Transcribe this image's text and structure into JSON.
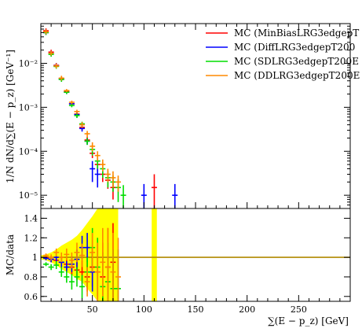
{
  "chart_data": [
    {
      "type": "scatter",
      "panel": "main",
      "ylabel": "1/N dN/d∑(E − p_z) [GeV⁻¹]",
      "yscale": "log",
      "ylim": [
        5e-06,
        0.08
      ],
      "xlim": [
        0,
        300
      ],
      "yticks": [
        {
          "value": 0.01,
          "label": "10⁻²"
        },
        {
          "value": 0.001,
          "label": "10⁻³"
        },
        {
          "value": 0.0001,
          "label": "10⁻⁴"
        },
        {
          "value": 1e-05,
          "label": "10⁻⁵"
        }
      ],
      "legend_position": "top-right",
      "series": [
        {
          "name": "MC (MinBiasLRG3edgepT",
          "color": "#ff0000",
          "x": [
            5,
            10,
            15,
            20,
            25,
            30,
            35,
            40,
            45,
            50,
            55,
            60,
            65,
            70,
            110
          ],
          "y": [
            0.055,
            0.018,
            0.009,
            0.0045,
            0.0023,
            0.0012,
            0.0007,
            0.00035,
            0.00018,
            9e-05,
            5e-05,
            3e-05,
            2.2e-05,
            1.5e-05,
            1.5e-05
          ],
          "yerr": [
            0,
            0,
            0,
            0,
            0.0002,
            0.0001,
            8e-05,
            5e-05,
            3e-05,
            2e-05,
            1.5e-05,
            1e-05,
            8e-06,
            7e-06,
            1.5e-05
          ]
        },
        {
          "name": "MC (DiffLRG3edgepT200",
          "color": "#0000ff",
          "x": [
            5,
            10,
            15,
            20,
            25,
            30,
            35,
            40,
            45,
            50,
            55,
            100,
            130
          ],
          "y": [
            0.05,
            0.017,
            0.0088,
            0.0044,
            0.0022,
            0.0012,
            0.00068,
            0.00033,
            0.00017,
            4e-05,
            3e-05,
            1e-05,
            1e-05
          ],
          "yerr": [
            0,
            0,
            0,
            0,
            0.0002,
            0.0001,
            8e-05,
            5e-05,
            3e-05,
            2e-05,
            1.5e-05,
            8e-06,
            8e-06
          ]
        },
        {
          "name": "MC (SDLRG3edgepT200E",
          "color": "#00dd00",
          "x": [
            5,
            10,
            15,
            20,
            25,
            30,
            35,
            40,
            45,
            50,
            55,
            60,
            65,
            70,
            75,
            80
          ],
          "y": [
            0.05,
            0.016,
            0.0085,
            0.0043,
            0.0022,
            0.0011,
            0.00065,
            0.00042,
            0.00017,
            0.00011,
            6e-05,
            4e-05,
            2.5e-05,
            2e-05,
            1.5e-05,
            1e-05
          ],
          "yerr": [
            0,
            0,
            0,
            0,
            0.0002,
            0.0001,
            8e-05,
            5e-05,
            3e-05,
            3e-05,
            2e-05,
            1.5e-05,
            1e-05,
            8e-06,
            8e-06,
            7e-06
          ]
        },
        {
          "name": "MC (DDLRG3edgepT200E",
          "color": "#ff8800",
          "x": [
            5,
            10,
            15,
            20,
            25,
            30,
            35,
            40,
            45,
            50,
            55,
            60,
            65,
            70,
            75
          ],
          "y": [
            0.052,
            0.017,
            0.0087,
            0.0046,
            0.0024,
            0.0013,
            0.0008,
            0.0004,
            0.00025,
            0.00013,
            8e-05,
            5e-05,
            3e-05,
            2.5e-05,
            2e-05
          ],
          "yerr": [
            0,
            0,
            0,
            0,
            0.0002,
            0.00012,
            8e-05,
            6e-05,
            4e-05,
            3e-05,
            2e-05,
            1.5e-05,
            1e-05,
            1e-05,
            8e-06
          ]
        }
      ]
    },
    {
      "type": "scatter",
      "panel": "ratio",
      "ylabel": "MC/data",
      "xlabel": "∑(E − p_z) [GeV]",
      "xlim": [
        0,
        300
      ],
      "ylim": [
        0.55,
        1.5
      ],
      "reference_line": 1,
      "xticks": [
        {
          "value": 50,
          "label": "50"
        },
        {
          "value": 100,
          "label": "100"
        },
        {
          "value": 150,
          "label": "150"
        },
        {
          "value": 200,
          "label": "200"
        },
        {
          "value": 250,
          "label": "250"
        }
      ],
      "yticks": [
        {
          "value": 0.6,
          "label": "0.6"
        },
        {
          "value": 0.8,
          "label": "0.8"
        },
        {
          "value": 1,
          "label": "1"
        },
        {
          "value": 1.2,
          "label": "1.2"
        },
        {
          "value": 1.4,
          "label": "1.4"
        }
      ],
      "uncertainty_band": {
        "color": "#ffff00",
        "x": [
          0,
          5,
          10,
          15,
          20,
          25,
          30,
          35,
          40,
          45,
          50,
          55,
          60,
          65,
          70,
          75,
          80,
          110,
          115
        ],
        "lo": [
          0.98,
          0.97,
          0.95,
          0.92,
          0.88,
          0.85,
          0.82,
          0.78,
          0.75,
          0.68,
          0.62,
          0.55,
          0.55,
          0.55,
          0.55,
          0.55,
          null,
          0.55,
          null
        ],
        "hi": [
          1.02,
          1.03,
          1.05,
          1.08,
          1.12,
          1.15,
          1.18,
          1.22,
          1.28,
          1.35,
          1.42,
          1.5,
          1.5,
          1.5,
          1.5,
          1.5,
          null,
          1.5,
          null
        ]
      },
      "series": [
        {
          "name": "MC (MinBiasLRG3edgepT",
          "color": "#ff0000",
          "x": [
            5,
            10,
            15,
            20,
            25,
            30,
            35,
            40,
            45,
            50,
            55,
            60,
            65,
            70
          ],
          "y": [
            1.0,
            0.98,
            0.97,
            0.95,
            0.93,
            0.9,
            0.87,
            0.85,
            0.8,
            0.9,
            0.85,
            0.8,
            0.9,
            0.95
          ],
          "yerr": [
            0.02,
            0.03,
            0.04,
            0.05,
            0.06,
            0.08,
            0.1,
            0.12,
            0.15,
            0.2,
            0.3,
            0.35,
            0.4,
            0.4
          ]
        },
        {
          "name": "MC (DiffLRG3edgepT200",
          "color": "#0000ff",
          "x": [
            5,
            10,
            15,
            20,
            25,
            30,
            35,
            40,
            45,
            50
          ],
          "y": [
            0.99,
            0.98,
            1.0,
            0.95,
            0.9,
            0.93,
            0.98,
            1.1,
            1.1,
            0.85
          ],
          "yerr": [
            0.02,
            0.03,
            0.04,
            0.05,
            0.06,
            0.08,
            0.1,
            0.12,
            0.15,
            0.2
          ]
        },
        {
          "name": "MC (SDLRG3edgepT200E",
          "color": "#00dd00",
          "x": [
            5,
            10,
            15,
            20,
            25,
            30,
            35,
            40,
            45,
            50,
            55,
            60,
            65,
            70,
            75
          ],
          "y": [
            0.93,
            0.9,
            0.92,
            0.85,
            0.8,
            0.75,
            0.8,
            0.7,
            0.85,
            1.1,
            0.9,
            0.7,
            0.75,
            0.68,
            0.68
          ],
          "yerr": [
            0.02,
            0.03,
            0.04,
            0.05,
            0.06,
            0.08,
            0.1,
            0.12,
            0.15,
            0.2,
            0.3,
            0.35,
            0.4,
            0.4,
            0.4
          ]
        },
        {
          "name": "MC (DDLRG3edgepT200E",
          "color": "#ff8800",
          "x": [
            5,
            10,
            15,
            20,
            25,
            30,
            35,
            40,
            45,
            50,
            55,
            60,
            65,
            70,
            75
          ],
          "y": [
            1.02,
            1.0,
            1.05,
            1.0,
            1.03,
            0.97,
            1.05,
            1.02,
            0.75,
            1.05,
            0.85,
            0.95,
            0.9,
            0.85,
            0.8
          ],
          "yerr": [
            0.02,
            0.03,
            0.04,
            0.05,
            0.06,
            0.08,
            0.1,
            0.12,
            0.15,
            0.2,
            0.3,
            0.35,
            0.4,
            0.4,
            0.4
          ]
        }
      ]
    }
  ]
}
